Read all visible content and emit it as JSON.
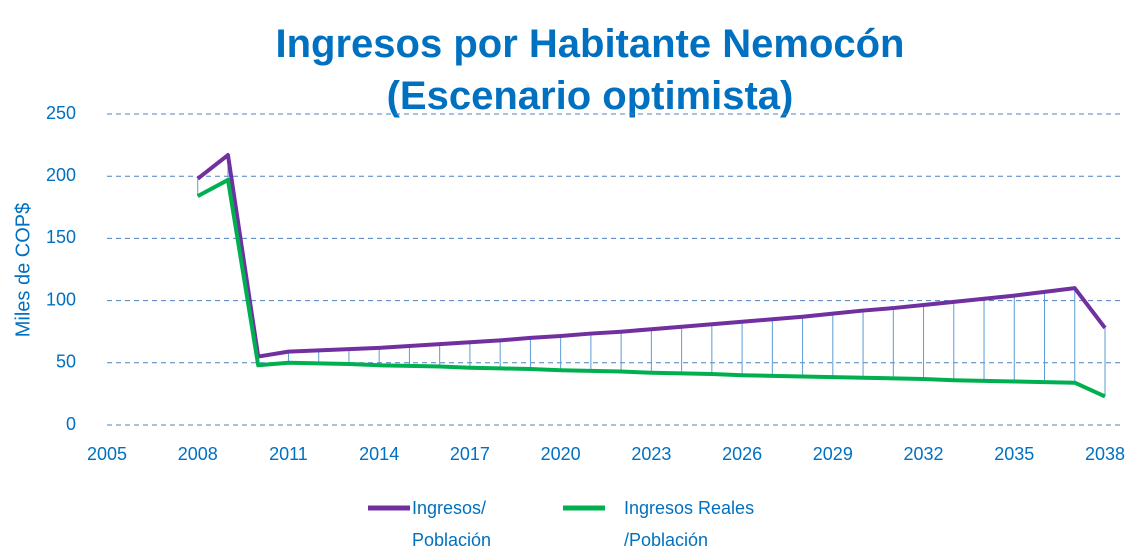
{
  "chart_data": {
    "type": "line",
    "title": "Ingresos por Habitante Nemocón (Escenario optimista)",
    "y_label": "Miles de COP$",
    "x": [
      2008,
      2009,
      2010,
      2011,
      2012,
      2013,
      2014,
      2015,
      2016,
      2017,
      2018,
      2019,
      2020,
      2021,
      2022,
      2023,
      2024,
      2025,
      2026,
      2027,
      2028,
      2029,
      2030,
      2031,
      2032,
      2033,
      2034,
      2035,
      2036,
      2037,
      2038
    ],
    "series": [
      {
        "name": "Ingresos/ Población",
        "color": "#7030a0",
        "values": [
          198,
          217,
          55,
          59,
          60,
          61,
          62,
          63.5,
          65,
          66.5,
          68,
          70,
          71.5,
          73.5,
          75,
          77,
          79,
          81,
          83,
          85,
          87,
          89.5,
          92,
          94,
          96.5,
          99,
          101.5,
          104,
          107,
          110,
          78
        ]
      },
      {
        "name": "Ingresos Reales /Población",
        "color": "#00b050",
        "values": [
          184,
          197,
          48,
          50,
          49.5,
          49,
          48,
          47.5,
          47,
          46,
          45.5,
          45,
          44,
          43.5,
          43,
          42,
          41.5,
          41,
          40,
          39.5,
          39,
          38.5,
          38,
          37.5,
          37,
          36,
          35.5,
          35,
          34.5,
          34,
          23
        ]
      }
    ],
    "drop_lines": true,
    "drop_line_color": "#5b9bd5",
    "xlim": [
      2005,
      2038
    ],
    "xticks": [
      2005,
      2008,
      2011,
      2014,
      2017,
      2020,
      2023,
      2026,
      2029,
      2032,
      2035,
      2038
    ],
    "ylim": [
      0,
      250
    ],
    "yticks": [
      0,
      50,
      100,
      150,
      200,
      250
    ],
    "grid": true,
    "legend": "bottom"
  }
}
